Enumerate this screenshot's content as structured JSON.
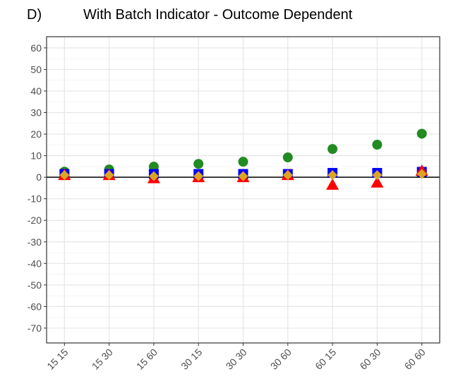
{
  "chart_data": {
    "type": "scatter",
    "panel_label": "D)",
    "title": "With Batch Indicator - Outcome Dependent",
    "categories": [
      "15 15",
      "15 30",
      "15 60",
      "30 15",
      "30 30",
      "30 60",
      "60 15",
      "60 30",
      "60 60"
    ],
    "series": [
      {
        "color": "#228b22",
        "marker": "circle",
        "values": [
          2.6,
          3.6,
          4.9,
          6.2,
          7.2,
          9.2,
          13.1,
          15.1,
          20.2
        ]
      },
      {
        "color": "#0000ff",
        "marker": "square",
        "values": [
          1.5,
          1.5,
          1.5,
          1.5,
          1.5,
          1.5,
          2,
          2,
          2.5
        ]
      },
      {
        "color": "#ff0000",
        "marker": "triangle",
        "values": [
          1,
          1,
          -0.5,
          0,
          0,
          1,
          -3.5,
          -2.5,
          3
        ]
      },
      {
        "color": "#daa520",
        "marker": "diamond",
        "values": [
          1,
          1,
          0.5,
          0.5,
          0.5,
          1,
          1,
          1,
          1.5
        ]
      }
    ],
    "ylim": [
      -76.9,
      65.2
    ],
    "yticks": [
      -70,
      -60,
      -50,
      -40,
      -30,
      -20,
      -10,
      0,
      10,
      20,
      30,
      40,
      50,
      60
    ],
    "hline": 0,
    "grid": true
  }
}
